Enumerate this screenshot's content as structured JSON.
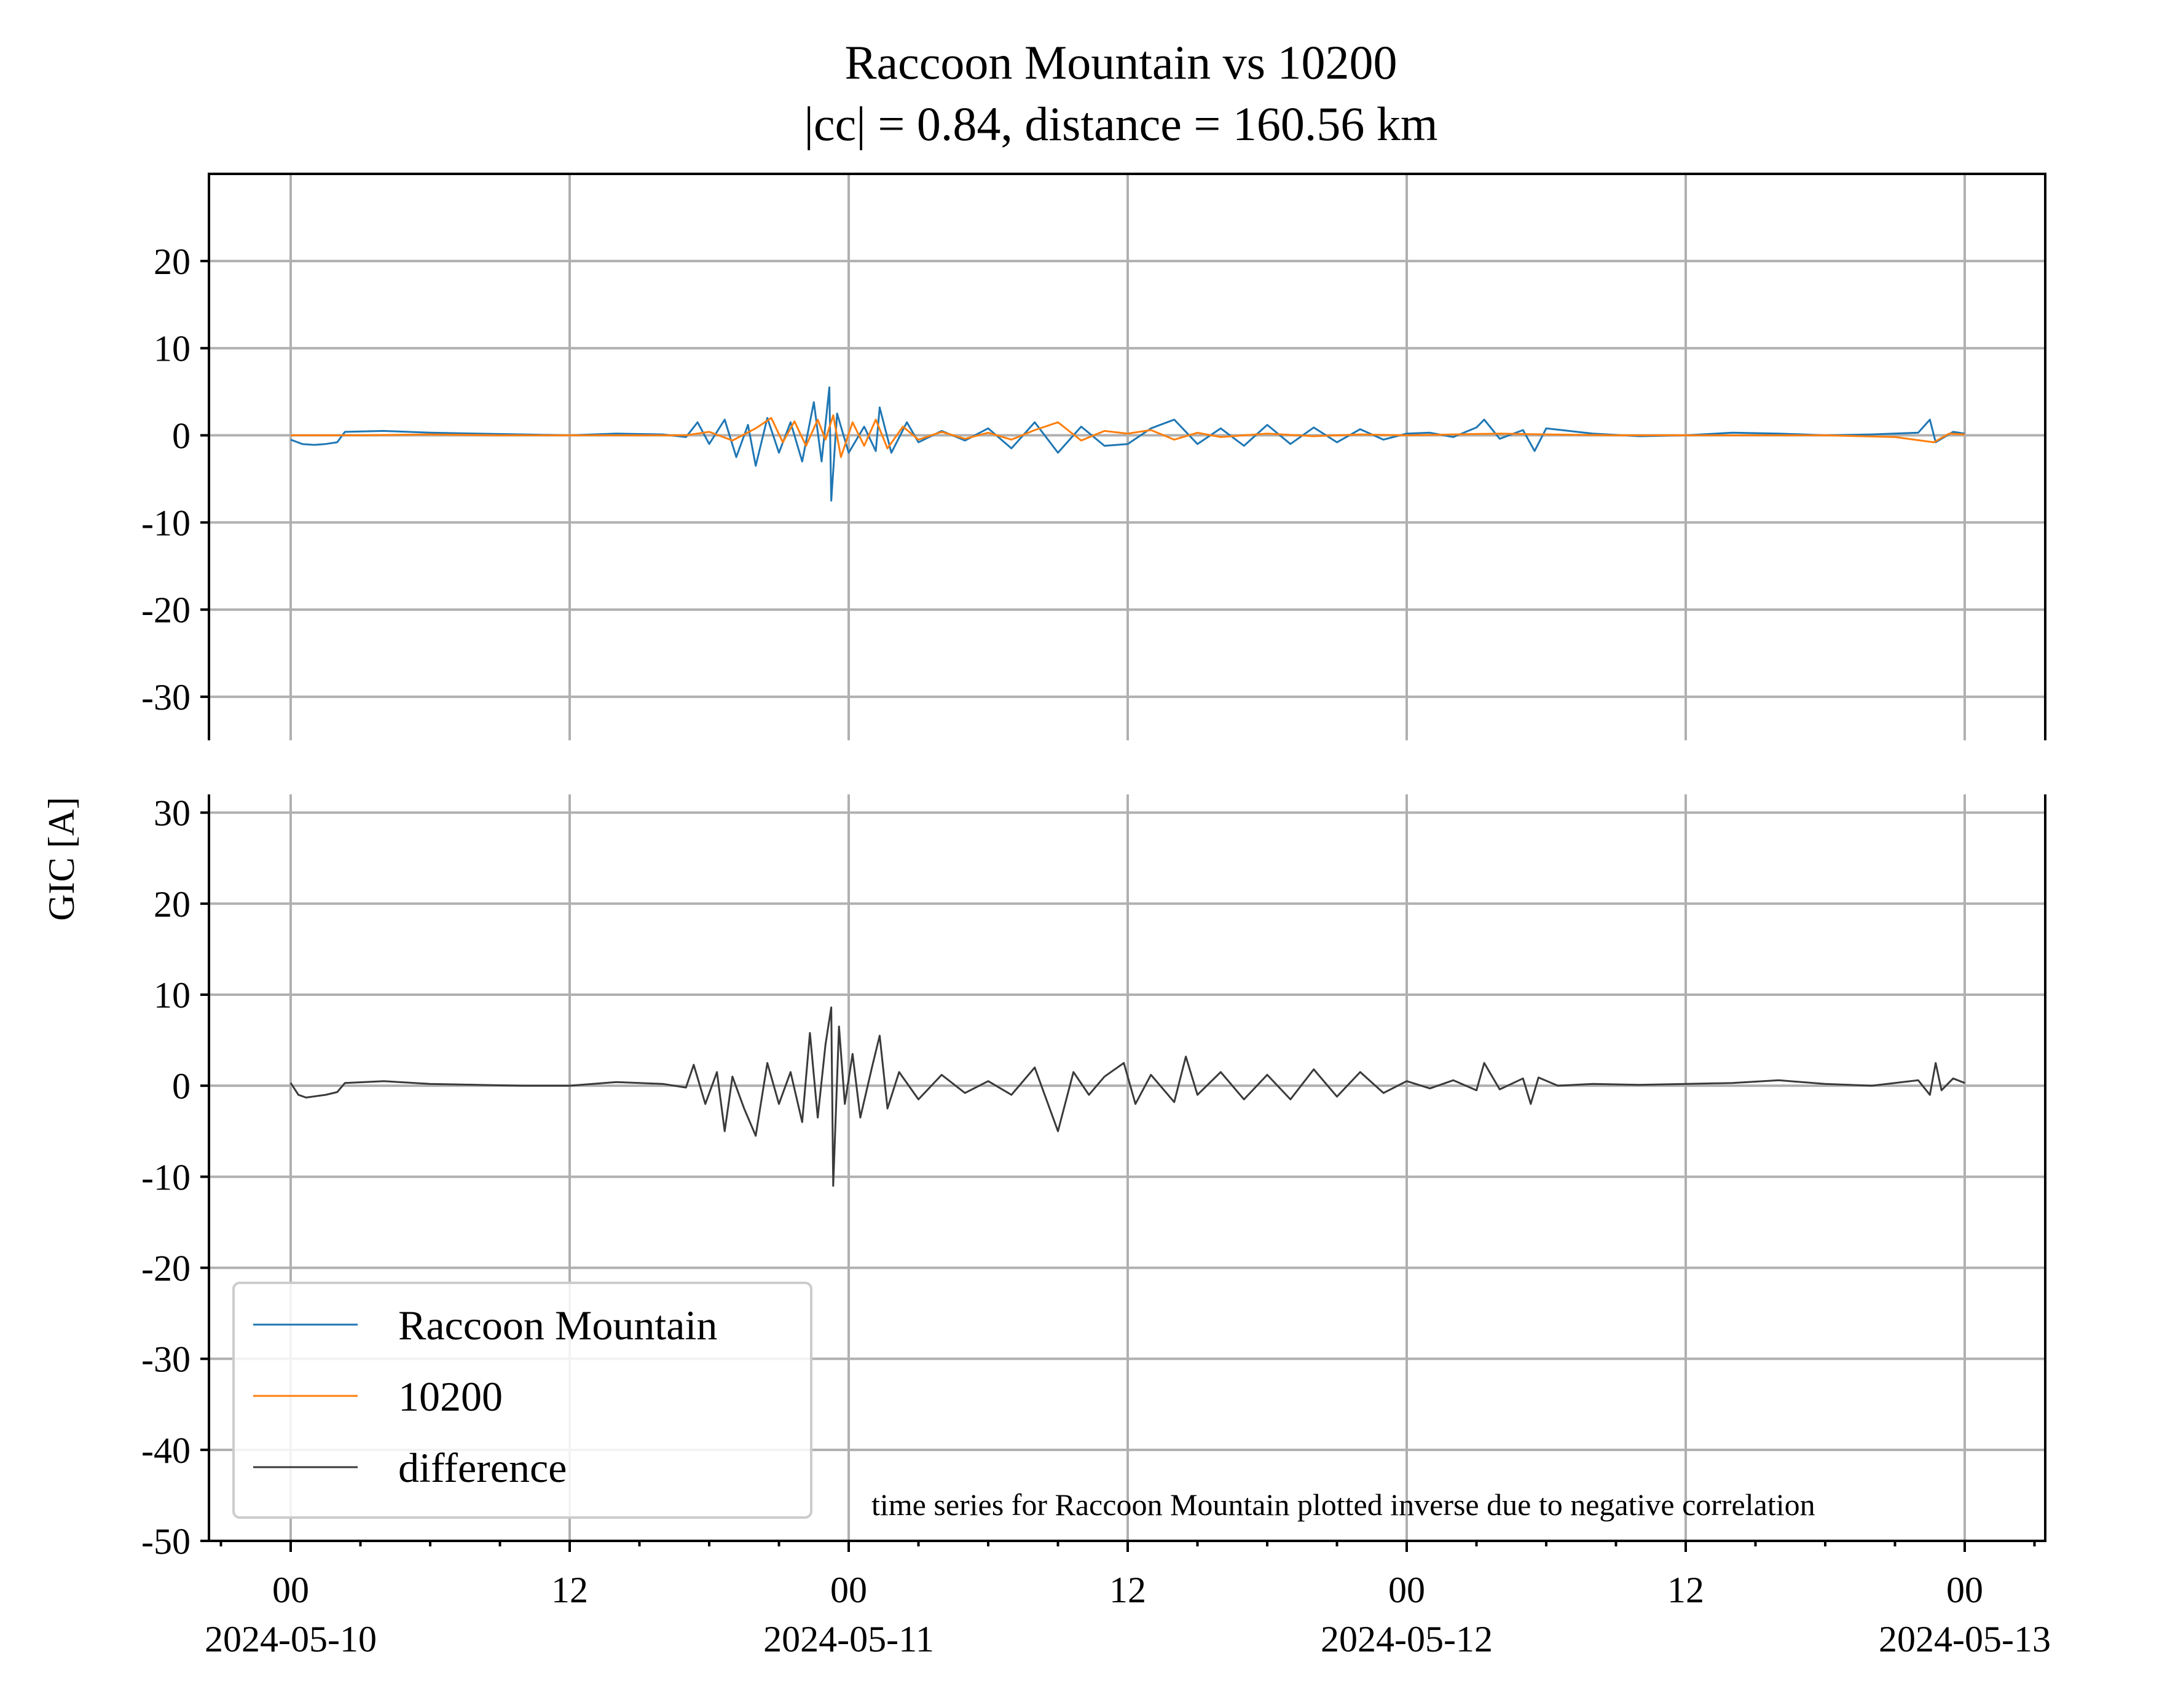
{
  "chart_data": [
    {
      "type": "line",
      "title": "Raccoon Mountain vs 10200",
      "subtitle": "|cc| = 0.84, distance = 160.56 km",
      "ylabel": "GIC [A]",
      "ylim": [
        -35,
        30
      ],
      "yticks": [
        20,
        10,
        0,
        -10,
        -20,
        -30
      ],
      "grid": true,
      "series": [
        {
          "name": "Raccoon Mountain",
          "color": "#1f77b4",
          "points": [
            [
              "2024-05-10 00:00",
              -0.5
            ],
            [
              "2024-05-10 00:30",
              -1.0
            ],
            [
              "2024-05-10 01:00",
              -1.1
            ],
            [
              "2024-05-10 01:30",
              -1.0
            ],
            [
              "2024-05-10 02:00",
              -0.8
            ],
            [
              "2024-05-10 02:20",
              0.4
            ],
            [
              "2024-05-10 04:00",
              0.5
            ],
            [
              "2024-05-10 06:00",
              0.3
            ],
            [
              "2024-05-10 08:00",
              0.2
            ],
            [
              "2024-05-10 10:00",
              0.1
            ],
            [
              "2024-05-10 12:00",
              0.0
            ],
            [
              "2024-05-10 14:00",
              0.2
            ],
            [
              "2024-05-10 16:00",
              0.1
            ],
            [
              "2024-05-10 17:00",
              -0.2
            ],
            [
              "2024-05-10 17:30",
              1.5
            ],
            [
              "2024-05-10 18:00",
              -1.0
            ],
            [
              "2024-05-10 18:40",
              1.8
            ],
            [
              "2024-05-10 19:10",
              -2.5
            ],
            [
              "2024-05-10 19:40",
              1.2
            ],
            [
              "2024-05-10 20:00",
              -3.5
            ],
            [
              "2024-05-10 20:30",
              2.0
            ],
            [
              "2024-05-10 21:00",
              -2.0
            ],
            [
              "2024-05-10 21:30",
              1.5
            ],
            [
              "2024-05-10 22:00",
              -3.0
            ],
            [
              "2024-05-10 22:30",
              3.8
            ],
            [
              "2024-05-10 22:50",
              -3.0
            ],
            [
              "2024-05-10 23:10",
              5.5
            ],
            [
              "2024-05-10 23:15",
              -7.5
            ],
            [
              "2024-05-10 23:30",
              2.5
            ],
            [
              "2024-05-11 00:00",
              -2.0
            ],
            [
              "2024-05-11 00:40",
              1.0
            ],
            [
              "2024-05-11 01:10",
              -1.8
            ],
            [
              "2024-05-11 01:20",
              3.2
            ],
            [
              "2024-05-11 01:50",
              -2.0
            ],
            [
              "2024-05-11 02:30",
              1.5
            ],
            [
              "2024-05-11 03:00",
              -0.8
            ],
            [
              "2024-05-11 04:00",
              0.5
            ],
            [
              "2024-05-11 05:00",
              -0.6
            ],
            [
              "2024-05-11 06:00",
              0.8
            ],
            [
              "2024-05-11 07:00",
              -1.5
            ],
            [
              "2024-05-11 08:00",
              1.5
            ],
            [
              "2024-05-11 09:00",
              -2.0
            ],
            [
              "2024-05-11 10:00",
              1.0
            ],
            [
              "2024-05-11 11:00",
              -1.2
            ],
            [
              "2024-05-11 12:00",
              -1.0
            ],
            [
              "2024-05-11 13:00",
              0.8
            ],
            [
              "2024-05-11 14:00",
              1.8
            ],
            [
              "2024-05-11 15:00",
              -1.0
            ],
            [
              "2024-05-11 16:00",
              0.8
            ],
            [
              "2024-05-11 17:00",
              -1.2
            ],
            [
              "2024-05-11 18:00",
              1.2
            ],
            [
              "2024-05-11 19:00",
              -1.0
            ],
            [
              "2024-05-11 20:00",
              0.9
            ],
            [
              "2024-05-11 21:00",
              -0.8
            ],
            [
              "2024-05-11 22:00",
              0.7
            ],
            [
              "2024-05-11 23:00",
              -0.5
            ],
            [
              "2024-05-12 00:00",
              0.2
            ],
            [
              "2024-05-12 01:00",
              0.3
            ],
            [
              "2024-05-12 02:00",
              -0.2
            ],
            [
              "2024-05-12 03:00",
              0.9
            ],
            [
              "2024-05-12 03:20",
              1.8
            ],
            [
              "2024-05-12 04:00",
              -0.4
            ],
            [
              "2024-05-12 05:00",
              0.6
            ],
            [
              "2024-05-12 05:30",
              -1.8
            ],
            [
              "2024-05-12 06:00",
              0.8
            ],
            [
              "2024-05-12 08:00",
              0.2
            ],
            [
              "2024-05-12 10:00",
              -0.1
            ],
            [
              "2024-05-12 12:00",
              0.0
            ],
            [
              "2024-05-12 14:00",
              0.3
            ],
            [
              "2024-05-12 16:00",
              0.2
            ],
            [
              "2024-05-12 18:00",
              0.0
            ],
            [
              "2024-05-12 20:00",
              0.1
            ],
            [
              "2024-05-12 22:00",
              0.3
            ],
            [
              "2024-05-12 22:30",
              1.8
            ],
            [
              "2024-05-12 22:45",
              -0.8
            ],
            [
              "2024-05-12 23:30",
              0.4
            ],
            [
              "2024-05-13 00:00",
              0.2
            ]
          ]
        },
        {
          "name": "10200",
          "color": "#ff7f0e",
          "points": [
            [
              "2024-05-10 00:00",
              0.0
            ],
            [
              "2024-05-10 03:00",
              0.0
            ],
            [
              "2024-05-10 06:00",
              0.1
            ],
            [
              "2024-05-10 09:00",
              0.0
            ],
            [
              "2024-05-10 12:00",
              0.0
            ],
            [
              "2024-05-10 15:00",
              0.0
            ],
            [
              "2024-05-10 17:00",
              0.0
            ],
            [
              "2024-05-10 18:00",
              0.4
            ],
            [
              "2024-05-10 19:00",
              -0.6
            ],
            [
              "2024-05-10 20:00",
              0.8
            ],
            [
              "2024-05-10 20:40",
              2.0
            ],
            [
              "2024-05-10 21:10",
              -0.8
            ],
            [
              "2024-05-10 21:40",
              1.6
            ],
            [
              "2024-05-10 22:10",
              -1.2
            ],
            [
              "2024-05-10 22:40",
              1.8
            ],
            [
              "2024-05-10 23:00",
              -0.5
            ],
            [
              "2024-05-10 23:20",
              2.3
            ],
            [
              "2024-05-10 23:40",
              -2.5
            ],
            [
              "2024-05-11 00:10",
              1.5
            ],
            [
              "2024-05-11 00:40",
              -1.2
            ],
            [
              "2024-05-11 01:10",
              1.8
            ],
            [
              "2024-05-11 01:40",
              -1.5
            ],
            [
              "2024-05-11 02:20",
              1.0
            ],
            [
              "2024-05-11 03:00",
              -0.5
            ],
            [
              "2024-05-11 04:00",
              0.4
            ],
            [
              "2024-05-11 05:00",
              -0.4
            ],
            [
              "2024-05-11 06:00",
              0.3
            ],
            [
              "2024-05-11 07:00",
              -0.5
            ],
            [
              "2024-05-11 08:00",
              0.6
            ],
            [
              "2024-05-11 09:00",
              1.5
            ],
            [
              "2024-05-11 10:00",
              -0.6
            ],
            [
              "2024-05-11 11:00",
              0.5
            ],
            [
              "2024-05-11 12:00",
              0.2
            ],
            [
              "2024-05-11 13:00",
              0.6
            ],
            [
              "2024-05-11 14:00",
              -0.5
            ],
            [
              "2024-05-11 15:00",
              0.3
            ],
            [
              "2024-05-11 16:00",
              -0.2
            ],
            [
              "2024-05-11 18:00",
              0.2
            ],
            [
              "2024-05-11 20:00",
              -0.1
            ],
            [
              "2024-05-11 22:00",
              0.1
            ],
            [
              "2024-05-12 00:00",
              0.0
            ],
            [
              "2024-05-12 02:00",
              0.1
            ],
            [
              "2024-05-12 04:00",
              0.2
            ],
            [
              "2024-05-12 06:00",
              0.1
            ],
            [
              "2024-05-12 09:00",
              0.0
            ],
            [
              "2024-05-12 12:00",
              0.0
            ],
            [
              "2024-05-12 15:00",
              0.0
            ],
            [
              "2024-05-12 18:00",
              0.0
            ],
            [
              "2024-05-12 21:00",
              -0.2
            ],
            [
              "2024-05-12 22:40",
              -0.8
            ],
            [
              "2024-05-12 23:20",
              0.2
            ],
            [
              "2024-05-13 00:00",
              0.1
            ]
          ]
        }
      ]
    },
    {
      "type": "line",
      "ylim": [
        -50,
        32
      ],
      "yticks": [
        30,
        20,
        10,
        0,
        -10,
        -20,
        -30,
        -40,
        -50
      ],
      "grid": true,
      "xticks": [
        {
          "hour": "00",
          "date": "2024-05-10"
        },
        {
          "hour": "12",
          "date": ""
        },
        {
          "hour": "00",
          "date": "2024-05-11"
        },
        {
          "hour": "12",
          "date": ""
        },
        {
          "hour": "00",
          "date": "2024-05-12"
        },
        {
          "hour": "12",
          "date": ""
        },
        {
          "hour": "00",
          "date": "2024-05-13"
        }
      ],
      "legend_position": "lower-left",
      "annotation": "time series for Raccoon Mountain plotted inverse due to negative correlation",
      "series": [
        {
          "name": "difference",
          "color": "#3a3a3a",
          "points": [
            [
              "2024-05-10 00:00",
              0.3
            ],
            [
              "2024-05-10 00:20",
              -1.0
            ],
            [
              "2024-05-10 00:40",
              -1.3
            ],
            [
              "2024-05-10 01:30",
              -1.0
            ],
            [
              "2024-05-10 02:00",
              -0.7
            ],
            [
              "2024-05-10 02:20",
              0.3
            ],
            [
              "2024-05-10 04:00",
              0.5
            ],
            [
              "2024-05-10 06:00",
              0.2
            ],
            [
              "2024-05-10 08:00",
              0.1
            ],
            [
              "2024-05-10 10:00",
              0.0
            ],
            [
              "2024-05-10 12:00",
              0.0
            ],
            [
              "2024-05-10 14:00",
              0.4
            ],
            [
              "2024-05-10 16:00",
              0.2
            ],
            [
              "2024-05-10 17:00",
              -0.2
            ],
            [
              "2024-05-10 17:20",
              2.3
            ],
            [
              "2024-05-10 17:50",
              -2.0
            ],
            [
              "2024-05-10 18:20",
              1.5
            ],
            [
              "2024-05-10 18:40",
              -5.0
            ],
            [
              "2024-05-10 19:00",
              1.0
            ],
            [
              "2024-05-10 19:30",
              -2.5
            ],
            [
              "2024-05-10 20:00",
              -5.5
            ],
            [
              "2024-05-10 20:30",
              2.5
            ],
            [
              "2024-05-10 21:00",
              -2.0
            ],
            [
              "2024-05-10 21:30",
              1.5
            ],
            [
              "2024-05-10 22:00",
              -4.0
            ],
            [
              "2024-05-10 22:20",
              5.8
            ],
            [
              "2024-05-10 22:40",
              -3.5
            ],
            [
              "2024-05-10 23:00",
              4.5
            ],
            [
              "2024-05-10 23:15",
              8.6
            ],
            [
              "2024-05-10 23:20",
              -11.0
            ],
            [
              "2024-05-10 23:35",
              6.5
            ],
            [
              "2024-05-10 23:50",
              -2.0
            ],
            [
              "2024-05-11 00:10",
              3.5
            ],
            [
              "2024-05-11 00:30",
              -3.5
            ],
            [
              "2024-05-11 01:00",
              2.0
            ],
            [
              "2024-05-11 01:20",
              5.5
            ],
            [
              "2024-05-11 01:40",
              -2.5
            ],
            [
              "2024-05-11 02:10",
              1.5
            ],
            [
              "2024-05-11 03:00",
              -1.5
            ],
            [
              "2024-05-11 04:00",
              1.2
            ],
            [
              "2024-05-11 05:00",
              -0.8
            ],
            [
              "2024-05-11 06:00",
              0.5
            ],
            [
              "2024-05-11 07:00",
              -1.0
            ],
            [
              "2024-05-11 08:00",
              2.0
            ],
            [
              "2024-05-11 09:00",
              -5.0
            ],
            [
              "2024-05-11 09:40",
              1.5
            ],
            [
              "2024-05-11 10:20",
              -1.0
            ],
            [
              "2024-05-11 11:00",
              1.0
            ],
            [
              "2024-05-11 11:50",
              2.5
            ],
            [
              "2024-05-11 12:20",
              -2.0
            ],
            [
              "2024-05-11 13:00",
              1.2
            ],
            [
              "2024-05-11 14:00",
              -1.8
            ],
            [
              "2024-05-11 14:30",
              3.2
            ],
            [
              "2024-05-11 15:00",
              -1.0
            ],
            [
              "2024-05-11 16:00",
              1.5
            ],
            [
              "2024-05-11 17:00",
              -1.5
            ],
            [
              "2024-05-11 18:00",
              1.2
            ],
            [
              "2024-05-11 19:00",
              -1.5
            ],
            [
              "2024-05-11 20:00",
              1.8
            ],
            [
              "2024-05-11 21:00",
              -1.2
            ],
            [
              "2024-05-11 22:00",
              1.5
            ],
            [
              "2024-05-11 23:00",
              -0.8
            ],
            [
              "2024-05-12 00:00",
              0.5
            ],
            [
              "2024-05-12 01:00",
              -0.3
            ],
            [
              "2024-05-12 02:00",
              0.6
            ],
            [
              "2024-05-12 03:00",
              -0.5
            ],
            [
              "2024-05-12 03:20",
              2.5
            ],
            [
              "2024-05-12 04:00",
              -0.4
            ],
            [
              "2024-05-12 05:00",
              0.8
            ],
            [
              "2024-05-12 05:20",
              -2.0
            ],
            [
              "2024-05-12 05:40",
              0.9
            ],
            [
              "2024-05-12 06:30",
              0.0
            ],
            [
              "2024-05-12 08:00",
              0.2
            ],
            [
              "2024-05-12 10:00",
              0.1
            ],
            [
              "2024-05-12 12:00",
              0.2
            ],
            [
              "2024-05-12 14:00",
              0.3
            ],
            [
              "2024-05-12 16:00",
              0.6
            ],
            [
              "2024-05-12 18:00",
              0.2
            ],
            [
              "2024-05-12 20:00",
              0.0
            ],
            [
              "2024-05-12 22:00",
              0.6
            ],
            [
              "2024-05-12 22:30",
              -1.0
            ],
            [
              "2024-05-12 22:45",
              2.5
            ],
            [
              "2024-05-12 23:00",
              -0.5
            ],
            [
              "2024-05-12 23:30",
              0.8
            ],
            [
              "2024-05-13 00:00",
              0.3
            ]
          ]
        }
      ]
    }
  ]
}
